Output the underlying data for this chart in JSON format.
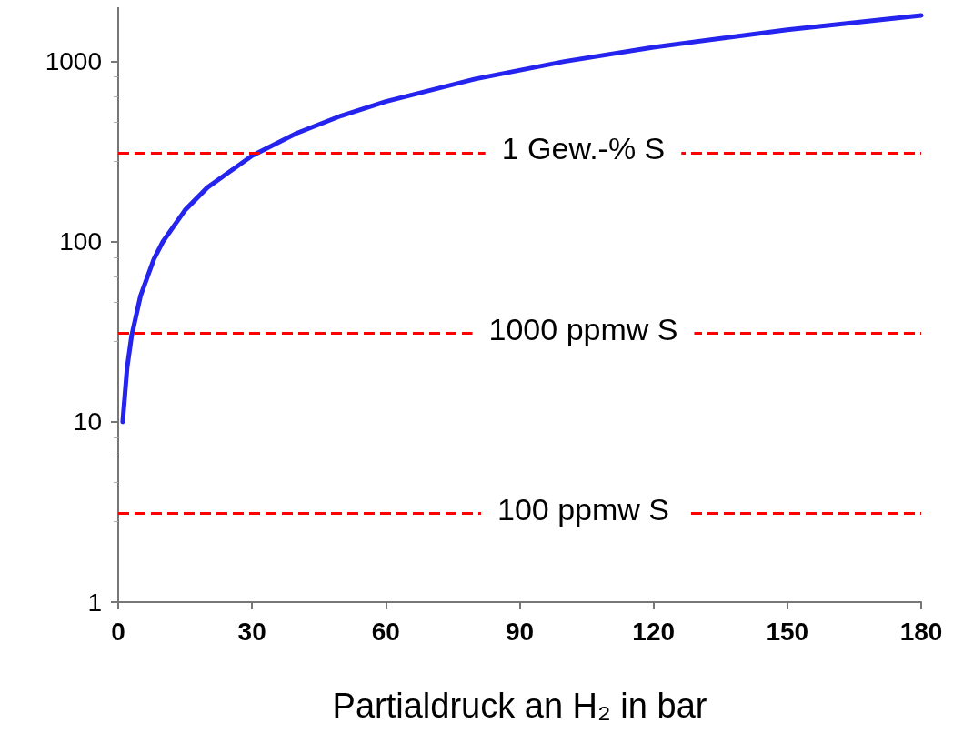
{
  "chart_data": {
    "type": "line",
    "xlabel": "Partialdruck an H₂ in bar",
    "x": [
      1,
      2,
      3,
      5,
      8,
      10,
      15,
      20,
      30,
      40,
      50,
      60,
      80,
      100,
      120,
      150,
      180
    ],
    "series": [
      {
        "color": "#2424ee",
        "values": [
          10,
          20,
          30,
          50,
          80,
          100,
          150,
          200,
          300,
          400,
          500,
          600,
          800,
          1000,
          1200,
          1500,
          1800
        ]
      }
    ],
    "xlim": [
      0,
      180
    ],
    "xticks": [
      0,
      30,
      60,
      90,
      120,
      150,
      180
    ],
    "ylim": [
      1,
      2000
    ],
    "yticks": [
      1,
      10,
      100,
      1000
    ],
    "log": true,
    "grid": false,
    "marker": "none",
    "line_style": "solid",
    "ref_lines": [
      {
        "axis": "y",
        "value": 310,
        "label": "1 Gew.-% S",
        "color": "#ff0000",
        "line_style": "dashed"
      },
      {
        "axis": "y",
        "value": 31,
        "label": "1000 ppmw S",
        "color": "#ff0000",
        "line_style": "dashed"
      },
      {
        "axis": "y",
        "value": 3.1,
        "label": "100 ppmw S",
        "color": "#ff0000",
        "line_style": "dashed"
      }
    ]
  }
}
